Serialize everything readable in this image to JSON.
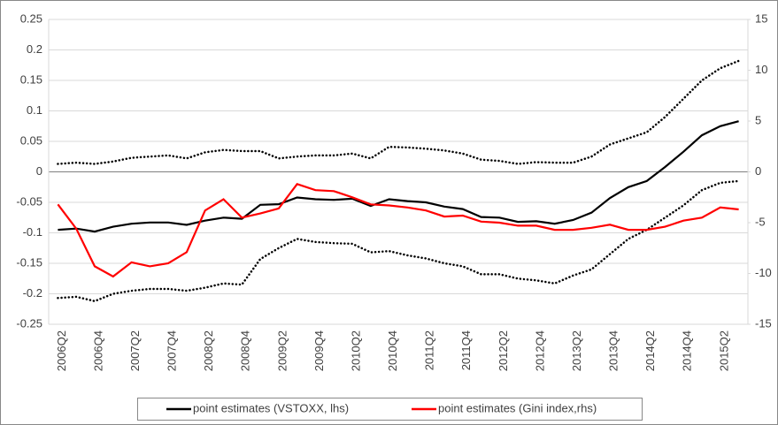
{
  "chart_data": {
    "type": "line",
    "categories": [
      "2006Q2",
      null,
      "2006Q4",
      null,
      "2007Q2",
      null,
      "2007Q4",
      null,
      "2008Q2",
      null,
      "2008Q4",
      null,
      "2009Q2",
      null,
      "2009Q4",
      null,
      "2010Q2",
      null,
      "2010Q4",
      null,
      "2011Q2",
      null,
      "2011Q4",
      null,
      "2012Q2",
      null,
      "2012Q4",
      null,
      "2013Q2",
      null,
      "2013Q4",
      null,
      "2014Q2",
      null,
      "2014Q4",
      null,
      "2015Q2",
      null
    ],
    "series": [
      {
        "name": "point estimates (VSTOXX, lhs)",
        "color": "#000000",
        "axis": "y",
        "values": [
          -0.095,
          -0.093,
          -0.098,
          -0.09,
          -0.085,
          -0.083,
          -0.083,
          -0.087,
          -0.08,
          -0.075,
          -0.077,
          -0.054,
          -0.053,
          -0.042,
          -0.045,
          -0.046,
          -0.044,
          -0.056,
          -0.045,
          -0.048,
          -0.05,
          -0.057,
          -0.061,
          -0.074,
          -0.075,
          -0.082,
          -0.081,
          -0.085,
          -0.079,
          -0.067,
          -0.043,
          -0.025,
          -0.015,
          0.008,
          0.033,
          0.06,
          0.075,
          0.083
        ]
      },
      {
        "name": "point estimates (Gini index,rhs)",
        "color": "#ff0000",
        "axis": "y2",
        "values": [
          -3.2,
          -5.6,
          -9.3,
          -10.3,
          -8.9,
          -9.3,
          -9.0,
          -7.9,
          -3.8,
          -2.7,
          -4.5,
          -4.1,
          -3.6,
          -1.2,
          -1.8,
          -1.9,
          -2.5,
          -3.2,
          -3.3,
          -3.5,
          -3.8,
          -4.4,
          -4.3,
          -4.9,
          -5.0,
          -5.3,
          -5.3,
          -5.7,
          -5.7,
          -5.5,
          -5.2,
          -5.7,
          -5.7,
          -5.4,
          -4.8,
          -4.5,
          -3.5,
          -3.7
        ]
      }
    ],
    "bands": [
      {
        "color": "#000000",
        "values": [
          0.013,
          0.015,
          0.013,
          0.017,
          0.023,
          0.025,
          0.027,
          0.022,
          0.032,
          0.036,
          0.034,
          0.034,
          0.022,
          0.025,
          0.027,
          0.027,
          0.03,
          0.022,
          0.041,
          0.04,
          0.038,
          0.035,
          0.03,
          0.02,
          0.018,
          0.013,
          0.016,
          0.015,
          0.015,
          0.025,
          0.045,
          0.055,
          0.065,
          0.09,
          0.12,
          0.15,
          0.17,
          0.182
        ]
      },
      {
        "color": "#000000",
        "values": [
          -0.207,
          -0.205,
          -0.212,
          -0.2,
          -0.195,
          -0.192,
          -0.192,
          -0.195,
          -0.19,
          -0.183,
          -0.185,
          -0.143,
          -0.125,
          -0.11,
          -0.115,
          -0.117,
          -0.118,
          -0.132,
          -0.13,
          -0.137,
          -0.142,
          -0.15,
          -0.155,
          -0.168,
          -0.168,
          -0.175,
          -0.178,
          -0.183,
          -0.17,
          -0.16,
          -0.135,
          -0.11,
          -0.095,
          -0.075,
          -0.055,
          -0.03,
          -0.018,
          -0.015
        ]
      }
    ],
    "ylim": [
      -0.25,
      0.25
    ],
    "yticks": [
      -0.25,
      -0.2,
      -0.15,
      -0.1,
      -0.05,
      0,
      0.05,
      0.1,
      0.15,
      0.2,
      0.25
    ],
    "y2lim": [
      -15,
      15
    ],
    "y2ticks": [
      -15,
      -10,
      -5,
      0,
      5,
      10,
      15
    ],
    "grid": true,
    "legend": "bottom"
  }
}
